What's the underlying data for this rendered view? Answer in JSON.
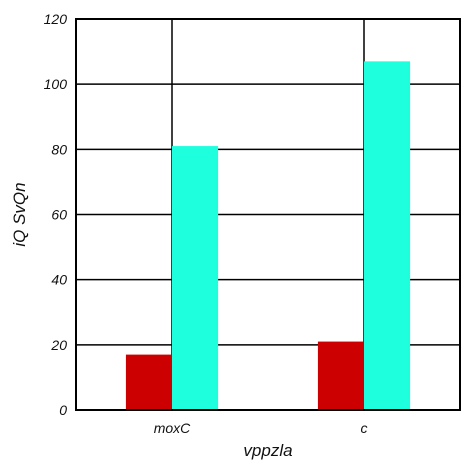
{
  "chart_data": {
    "type": "bar",
    "title": "",
    "xlabel": "vppzla",
    "ylabel": "iQ SvQn",
    "categories": [
      "moxC",
      "c"
    ],
    "series": [
      {
        "values": [
          17,
          21
        ],
        "color": "#cc0000"
      },
      {
        "values": [
          81,
          107
        ],
        "color": "#1effdd"
      }
    ],
    "ylim": [
      0,
      120
    ],
    "yticks": [
      0,
      20,
      40,
      60,
      80,
      100,
      120
    ],
    "grid": true,
    "legend": "none"
  }
}
